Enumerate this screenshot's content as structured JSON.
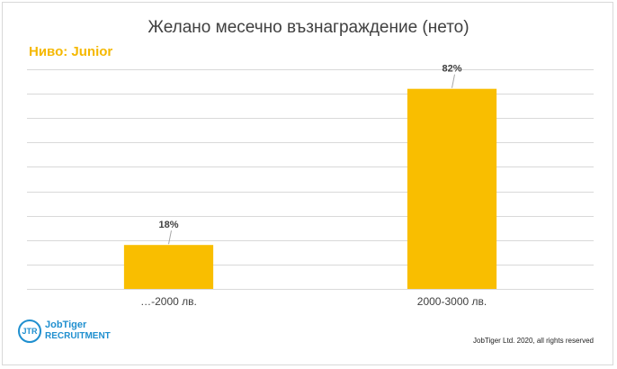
{
  "title": "Желано месечно възнаграждение (нето)",
  "level_label": "Ниво: Junior",
  "colors": {
    "bar": "#f9be00",
    "level": "#f5b800",
    "grid": "#d9d9d9",
    "text": "#404040",
    "brand": "#1f8fcf"
  },
  "logo": {
    "mark": "JTR",
    "name": "JobTiger",
    "subtitle": "RECRUITMENT"
  },
  "copyright": "JobTiger Ltd. 2020, all rights reserved",
  "chart_data": {
    "type": "bar",
    "categories": [
      "…-2000 лв.",
      "2000-3000 лв."
    ],
    "values": [
      18,
      82
    ],
    "data_labels": [
      "18%",
      "82%"
    ],
    "ylim": [
      0,
      90
    ],
    "grid": true,
    "gridlines": 9,
    "legend": "none"
  }
}
